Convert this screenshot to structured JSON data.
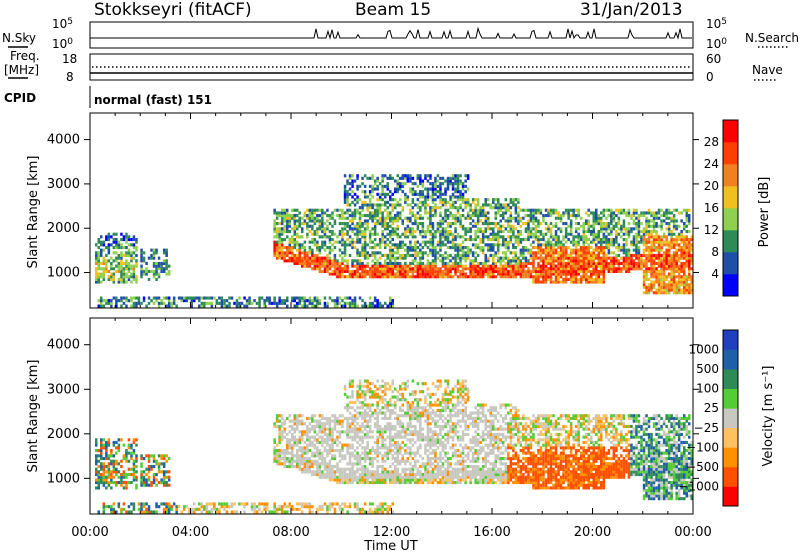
{
  "header": {
    "station": "Stokkseyri (fitACF)",
    "beam": "Beam 15",
    "date": "31/Jan/2013"
  },
  "side_labels": {
    "nsky": "N.Sky",
    "freq_line1": "Freq.",
    "freq_line2": "[MHz]",
    "cpid": "CPID",
    "nsearch": "N.Search",
    "nave": "Nave"
  },
  "nsky_panel": {
    "left_ticks": [
      "10^5",
      "10^0"
    ],
    "right_ticks": [
      "10^5",
      "10^0"
    ]
  },
  "freq_panel": {
    "left_ticks": [
      "18",
      "8"
    ],
    "right_ticks": [
      "60",
      "0"
    ]
  },
  "cpid_panel": {
    "text": "normal (fast) 151"
  },
  "colors": {
    "power": [
      "#0000ff",
      "#1f4fa8",
      "#2e8b57",
      "#8fd14f",
      "#f0c020",
      "#f08020",
      "#ff4000",
      "#ff0000"
    ],
    "velocity": [
      "#ff0000",
      "#ff5000",
      "#ff9000",
      "#ffc060",
      "#c8c8c0",
      "#55cc33",
      "#2e8b57",
      "#1f5fa8",
      "#2040c0"
    ]
  },
  "chart_data": [
    {
      "type": "heatmap",
      "name": "power",
      "ylabel": "Slant Range [km]",
      "yticks": [
        1000,
        2000,
        3000,
        4000
      ],
      "ylim": [
        200,
        4600
      ],
      "xlim": [
        0,
        24
      ],
      "xticks": [
        "00:00",
        "04:00",
        "08:00",
        "12:00",
        "16:00",
        "20:00",
        "00:00"
      ],
      "colorbar": {
        "label": "Power [dB]",
        "ticks": [
          "4",
          "8",
          "12",
          "16",
          "20",
          "24",
          "28"
        ],
        "range": [
          0,
          32
        ]
      }
    },
    {
      "type": "heatmap",
      "name": "velocity",
      "ylabel": "Slant Range [km]",
      "yticks": [
        1000,
        2000,
        3000,
        4000
      ],
      "ylim": [
        200,
        4600
      ],
      "xlim": [
        0,
        24
      ],
      "xticks": [
        "00:00",
        "04:00",
        "08:00",
        "12:00",
        "16:00",
        "20:00",
        "00:00"
      ],
      "xlabel": "Time UT",
      "colorbar": {
        "label": "Velocity [m s⁻¹]",
        "ticks": [
          "1000",
          "500",
          "100",
          "25",
          "−25",
          "−100",
          "−500",
          "−1000"
        ]
      }
    }
  ]
}
